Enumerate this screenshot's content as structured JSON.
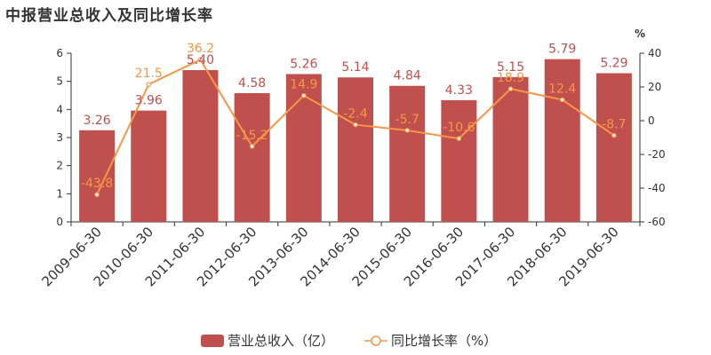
{
  "chart_data": {
    "type": "bar",
    "title": "中报营业总收入及同比增长率",
    "categories": [
      "2009-06-30",
      "2010-06-30",
      "2011-06-30",
      "2012-06-30",
      "2013-06-30",
      "2014-06-30",
      "2015-06-30",
      "2016-06-30",
      "2017-06-30",
      "2018-06-30",
      "2019-06-30"
    ],
    "series": [
      {
        "name": "营业总收入（亿）",
        "type": "bar",
        "axis": "left",
        "color": "#c0504d",
        "values": [
          3.26,
          3.96,
          5.4,
          4.58,
          5.26,
          5.14,
          4.84,
          4.33,
          5.15,
          5.79,
          5.29
        ],
        "labels": [
          "3.26",
          "3.96",
          "5.40",
          "4.58",
          "5.26",
          "5.14",
          "4.84",
          "4.33",
          "5.15",
          "5.79",
          "5.29"
        ]
      },
      {
        "name": "同比增长率（%）",
        "type": "line",
        "axis": "right",
        "color": "#f79646",
        "values": [
          -43.8,
          21.5,
          36.2,
          -15.2,
          14.9,
          -2.4,
          -5.7,
          -10.6,
          18.9,
          12.4,
          -8.7
        ],
        "labels": [
          "-43.8",
          "21.5",
          "36.2",
          "-15.2",
          "14.9",
          "-2.4",
          "-5.7",
          "-10.6",
          "18.9",
          "12.4",
          "-8.7"
        ]
      }
    ],
    "y_left": {
      "ylim": [
        0,
        6
      ],
      "ticks": [
        "0",
        "1",
        "2",
        "3",
        "4",
        "5",
        "6"
      ]
    },
    "y_right": {
      "ylim": [
        -60,
        40
      ],
      "ticks": [
        "-60",
        "-40",
        "-20",
        "0",
        "20",
        "40"
      ],
      "unit": "%"
    },
    "grid": false,
    "legend_position": "bottom-center"
  }
}
